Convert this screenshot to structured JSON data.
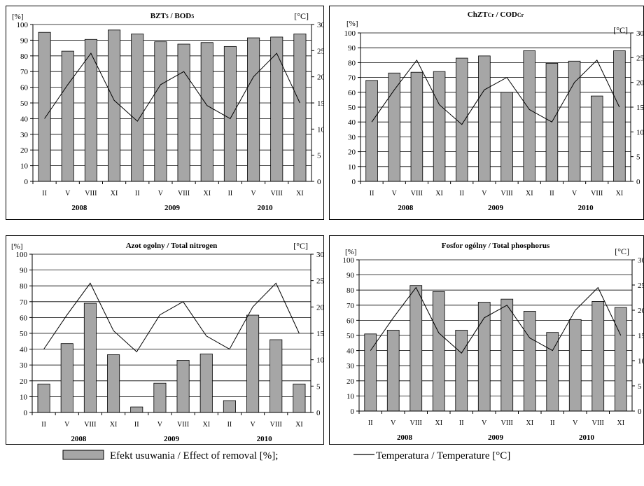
{
  "chart_data": [
    {
      "type": "bar",
      "title": "BZT5 / BOD5",
      "title_parts": [
        "BZT",
        "5",
        " / BOD",
        "5"
      ],
      "y_unit": "[%]",
      "y2_unit": "[°C]",
      "ylim": [
        0,
        100
      ],
      "yticks": [
        0,
        10,
        20,
        30,
        40,
        50,
        60,
        70,
        80,
        90,
        100
      ],
      "y2lim": [
        0,
        30
      ],
      "y2ticks": [
        0,
        5,
        10,
        15,
        20,
        25,
        30
      ],
      "categories": [
        "II",
        "V",
        "VIII",
        "XI",
        "II",
        "V",
        "VIII",
        "XI",
        "II",
        "V",
        "VIII",
        "XI"
      ],
      "years": [
        "2008",
        "2009",
        "2010"
      ],
      "series": [
        {
          "values": [
            95,
            83,
            90.5,
            96.5,
            94,
            89,
            87.5,
            88.5,
            86,
            91.5,
            92,
            94
          ]
        },
        {
          "axis": "right",
          "type": "line",
          "values": [
            12,
            18.5,
            24.5,
            15.5,
            11.5,
            18.5,
            21,
            14.5,
            12,
            20,
            24.5,
            15
          ]
        }
      ],
      "grid": true
    },
    {
      "type": "bar",
      "title": "ChZTCr / CODCr",
      "title_parts": [
        "ChZT",
        "Cr",
        " / COD",
        "Cr"
      ],
      "y_unit": "[%]",
      "y2_unit": "[°C]",
      "ylim": [
        0,
        100
      ],
      "yticks": [
        0,
        10,
        20,
        30,
        40,
        50,
        60,
        70,
        80,
        90,
        100
      ],
      "y2lim": [
        0,
        30
      ],
      "y2ticks": [
        0,
        5,
        10,
        15,
        20,
        25,
        30
      ],
      "categories": [
        "II",
        "V",
        "VIII",
        "XI",
        "II",
        "V",
        "VIII",
        "XI",
        "II",
        "V",
        "VIII",
        "XI"
      ],
      "years": [
        "2008",
        "2009",
        "2010"
      ],
      "series": [
        {
          "values": [
            68,
            73,
            73.5,
            74,
            83,
            84.5,
            60,
            88,
            79.5,
            81,
            57.5,
            88
          ]
        },
        {
          "axis": "right",
          "type": "line",
          "values": [
            12,
            18.5,
            24.5,
            15.5,
            11.5,
            18.5,
            21,
            14.5,
            12,
            20,
            24.5,
            15
          ]
        }
      ],
      "grid": true
    },
    {
      "type": "bar",
      "title": "Azot ogolny / Total nitrogen",
      "title_parts": [
        "Azot ogolny / Total nitrogen"
      ],
      "y_unit": "[%]",
      "y2_unit": "[°C]",
      "ylim": [
        0,
        100
      ],
      "yticks": [
        0,
        10,
        20,
        30,
        40,
        50,
        60,
        70,
        80,
        90,
        100
      ],
      "y2lim": [
        0,
        30
      ],
      "y2ticks": [
        0,
        5,
        10,
        15,
        20,
        25,
        30
      ],
      "categories": [
        "II",
        "V",
        "VIII",
        "XI",
        "II",
        "V",
        "VIII",
        "XI",
        "II",
        "V",
        "VIII",
        "XI"
      ],
      "years": [
        "2008",
        "2009",
        "2010"
      ],
      "series": [
        {
          "values": [
            18,
            43.5,
            69,
            36.5,
            3.5,
            18.5,
            33,
            37,
            7.5,
            61.5,
            46,
            18
          ]
        },
        {
          "axis": "right",
          "type": "line",
          "values": [
            12,
            18.5,
            24.5,
            15.5,
            11.5,
            18.5,
            21,
            14.5,
            12,
            20,
            24.5,
            15
          ]
        }
      ],
      "grid": true
    },
    {
      "type": "bar",
      "title": "Fosfor ogólny / Total phosphorus",
      "title_parts": [
        "Fosfor ogólny / Total phosphorus"
      ],
      "y_unit": "[%]",
      "y2_unit": "[°C]",
      "ylim": [
        0,
        100
      ],
      "yticks": [
        0,
        10,
        20,
        30,
        40,
        50,
        60,
        70,
        80,
        90,
        100
      ],
      "y2lim": [
        0,
        30
      ],
      "y2ticks": [
        0,
        5,
        10,
        15,
        20,
        25,
        30
      ],
      "categories": [
        "II",
        "V",
        "VIII",
        "XI",
        "II",
        "V",
        "VIII",
        "XI",
        "II",
        "V",
        "VIII",
        "XI"
      ],
      "years": [
        "2008",
        "2009",
        "2010"
      ],
      "series": [
        {
          "values": [
            51,
            53.5,
            83,
            79,
            53.5,
            72,
            74,
            66,
            52,
            60.5,
            72.5,
            68.5
          ]
        },
        {
          "axis": "right",
          "type": "line",
          "values": [
            12,
            18.5,
            24.5,
            15.5,
            11.5,
            18.5,
            21,
            14.5,
            12,
            20,
            24.5,
            15
          ]
        }
      ],
      "grid": true
    }
  ],
  "legend": {
    "bar_label": "Efekt usuwania / Effect of removal [%];",
    "line_label": "Temperatura / Temperature [°C]"
  },
  "colors": {
    "bar_fill": "#a6a6a6",
    "bar_stroke": "#000000",
    "line": "#000000",
    "grid": "#000000"
  }
}
